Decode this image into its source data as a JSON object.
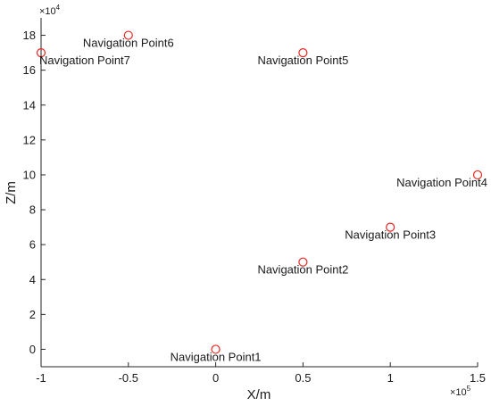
{
  "chart_data": {
    "type": "scatter",
    "title": "",
    "xlabel": "X/m",
    "ylabel": "Z/m",
    "x_exponent_label": {
      "base": "×10",
      "exp": "5"
    },
    "y_exponent_label": {
      "base": "×10",
      "exp": "4"
    },
    "xlim": [
      -100000,
      150000
    ],
    "ylim": [
      -10000,
      190000
    ],
    "x_ticks": [
      -100000,
      -50000,
      0,
      50000,
      100000,
      150000
    ],
    "x_tick_labels": [
      "-1",
      "-0.5",
      "0",
      "0.5",
      "1",
      "1.5"
    ],
    "y_ticks": [
      0,
      20000,
      40000,
      60000,
      80000,
      100000,
      120000,
      140000,
      160000,
      180000
    ],
    "y_tick_labels": [
      "0",
      "2",
      "4",
      "6",
      "8",
      "10",
      "12",
      "14",
      "16",
      "18"
    ],
    "grid": false,
    "marker": {
      "shape": "circle",
      "color": "#e8261f",
      "filled": false
    },
    "points": [
      {
        "label": "Navigation Point1",
        "x": 0,
        "y": 0
      },
      {
        "label": "Navigation Point2",
        "x": 50000,
        "y": 50000
      },
      {
        "label": "Navigation Point3",
        "x": 100000,
        "y": 70000
      },
      {
        "label": "Navigation Point4",
        "x": 150000,
        "y": 100000
      },
      {
        "label": "Navigation Point5",
        "x": 50000,
        "y": 170000
      },
      {
        "label": "Navigation Point6",
        "x": -50000,
        "y": 180000
      },
      {
        "label": "Navigation Point7",
        "x": -100000,
        "y": 170000
      }
    ]
  }
}
